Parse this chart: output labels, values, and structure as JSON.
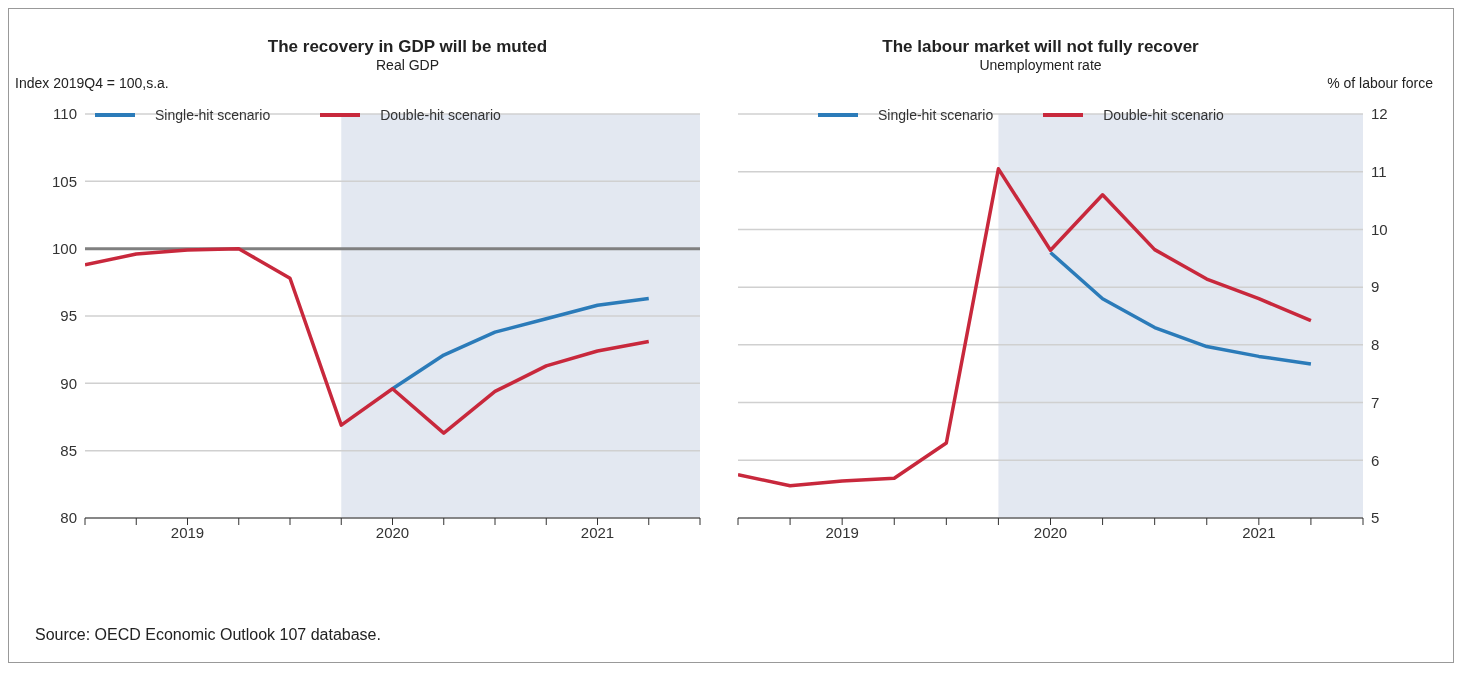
{
  "chart_data": [
    {
      "type": "line",
      "title": "The recovery in GDP will be muted",
      "subtitle": "Real GDP",
      "ylabel": "Index 2019Q4 = 100,s.a.",
      "x": [
        2019,
        2019.25,
        2019.5,
        2019.75,
        2020,
        2020.25,
        2020.5,
        2020.75,
        2021,
        2021.25,
        2021.5,
        2021.75
      ],
      "series": [
        {
          "name": "Single-hit scenario",
          "color": "#2b7bb9",
          "values": [
            null,
            null,
            null,
            null,
            null,
            null,
            89.6,
            92.1,
            93.8,
            94.8,
            95.8,
            96.3
          ]
        },
        {
          "name": "Double-hit scenario",
          "color": "#c8283c",
          "values": [
            98.8,
            99.6,
            99.9,
            100,
            97.8,
            86.9,
            89.6,
            86.3,
            89.4,
            91.3,
            92.4,
            93.1
          ]
        }
      ],
      "xlim": [
        2019,
        2022
      ],
      "xticks": [
        {
          "value": 2019,
          "label": null
        },
        {
          "value": 2019.25,
          "label": null
        },
        {
          "value": 2019.5,
          "label": "2019"
        },
        {
          "value": 2019.75,
          "label": null
        },
        {
          "value": 2020,
          "label": null
        },
        {
          "value": 2020.25,
          "label": null
        },
        {
          "value": 2020.5,
          "label": "2020"
        },
        {
          "value": 2020.75,
          "label": null
        },
        {
          "value": 2021,
          "label": null
        },
        {
          "value": 2021.25,
          "label": null
        },
        {
          "value": 2021.5,
          "label": "2021"
        },
        {
          "value": 2021.75,
          "label": null
        },
        {
          "value": 2022,
          "label": null
        }
      ],
      "ylim": [
        80,
        110
      ],
      "yticks": [
        80,
        85,
        90,
        95,
        100,
        105,
        110
      ],
      "ref_lines": [
        {
          "axis": "y",
          "value": 100,
          "color": "#808080"
        }
      ],
      "bands": [
        {
          "axis": "x",
          "from": 2020.25,
          "to": 2022,
          "color": "#e3e8f1"
        }
      ],
      "grid": "y",
      "legend": "top left",
      "line_style": "solid",
      "marker": "none",
      "annotations": [
        "Source: OECD Economic Outlook 107 database."
      ]
    },
    {
      "type": "line",
      "title": "The labour market will not fully recover",
      "subtitle": "Unemployment rate",
      "y2label": "% of labour force",
      "x": [
        2019,
        2019.25,
        2019.5,
        2019.75,
        2020,
        2020.25,
        2020.5,
        2020.75,
        2021,
        2021.25,
        2021.5,
        2021.75
      ],
      "series": [
        {
          "name": "Single-hit scenario",
          "color": "#2b7bb9",
          "axis": "y2",
          "values": [
            null,
            null,
            null,
            null,
            null,
            null,
            9.6,
            8.8,
            8.3,
            7.97,
            7.8,
            7.67
          ]
        },
        {
          "name": "Double-hit scenario",
          "color": "#c8283c",
          "axis": "y2",
          "values": [
            5.75,
            5.56,
            5.64,
            5.69,
            6.3,
            11.05,
            9.64,
            10.6,
            9.65,
            9.14,
            8.8,
            8.42
          ]
        }
      ],
      "xlim": [
        2019,
        2022
      ],
      "xticks": [
        {
          "value": 2019,
          "label": null
        },
        {
          "value": 2019.25,
          "label": null
        },
        {
          "value": 2019.5,
          "label": "2019"
        },
        {
          "value": 2019.75,
          "label": null
        },
        {
          "value": 2020,
          "label": null
        },
        {
          "value": 2020.25,
          "label": null
        },
        {
          "value": 2020.5,
          "label": "2020"
        },
        {
          "value": 2020.75,
          "label": null
        },
        {
          "value": 2021,
          "label": null
        },
        {
          "value": 2021.25,
          "label": null
        },
        {
          "value": 2021.5,
          "label": "2021"
        },
        {
          "value": 2021.75,
          "label": null
        },
        {
          "value": 2022,
          "label": null
        }
      ],
      "y2lim": [
        5,
        12
      ],
      "y2ticks": [
        5,
        6,
        7,
        8,
        9,
        10,
        11,
        12
      ],
      "bands": [
        {
          "axis": "x",
          "from": 2020.25,
          "to": 2022,
          "color": "#e3e8f1"
        }
      ],
      "grid": "y",
      "legend": "top left",
      "line_style": "solid",
      "marker": "none"
    }
  ]
}
